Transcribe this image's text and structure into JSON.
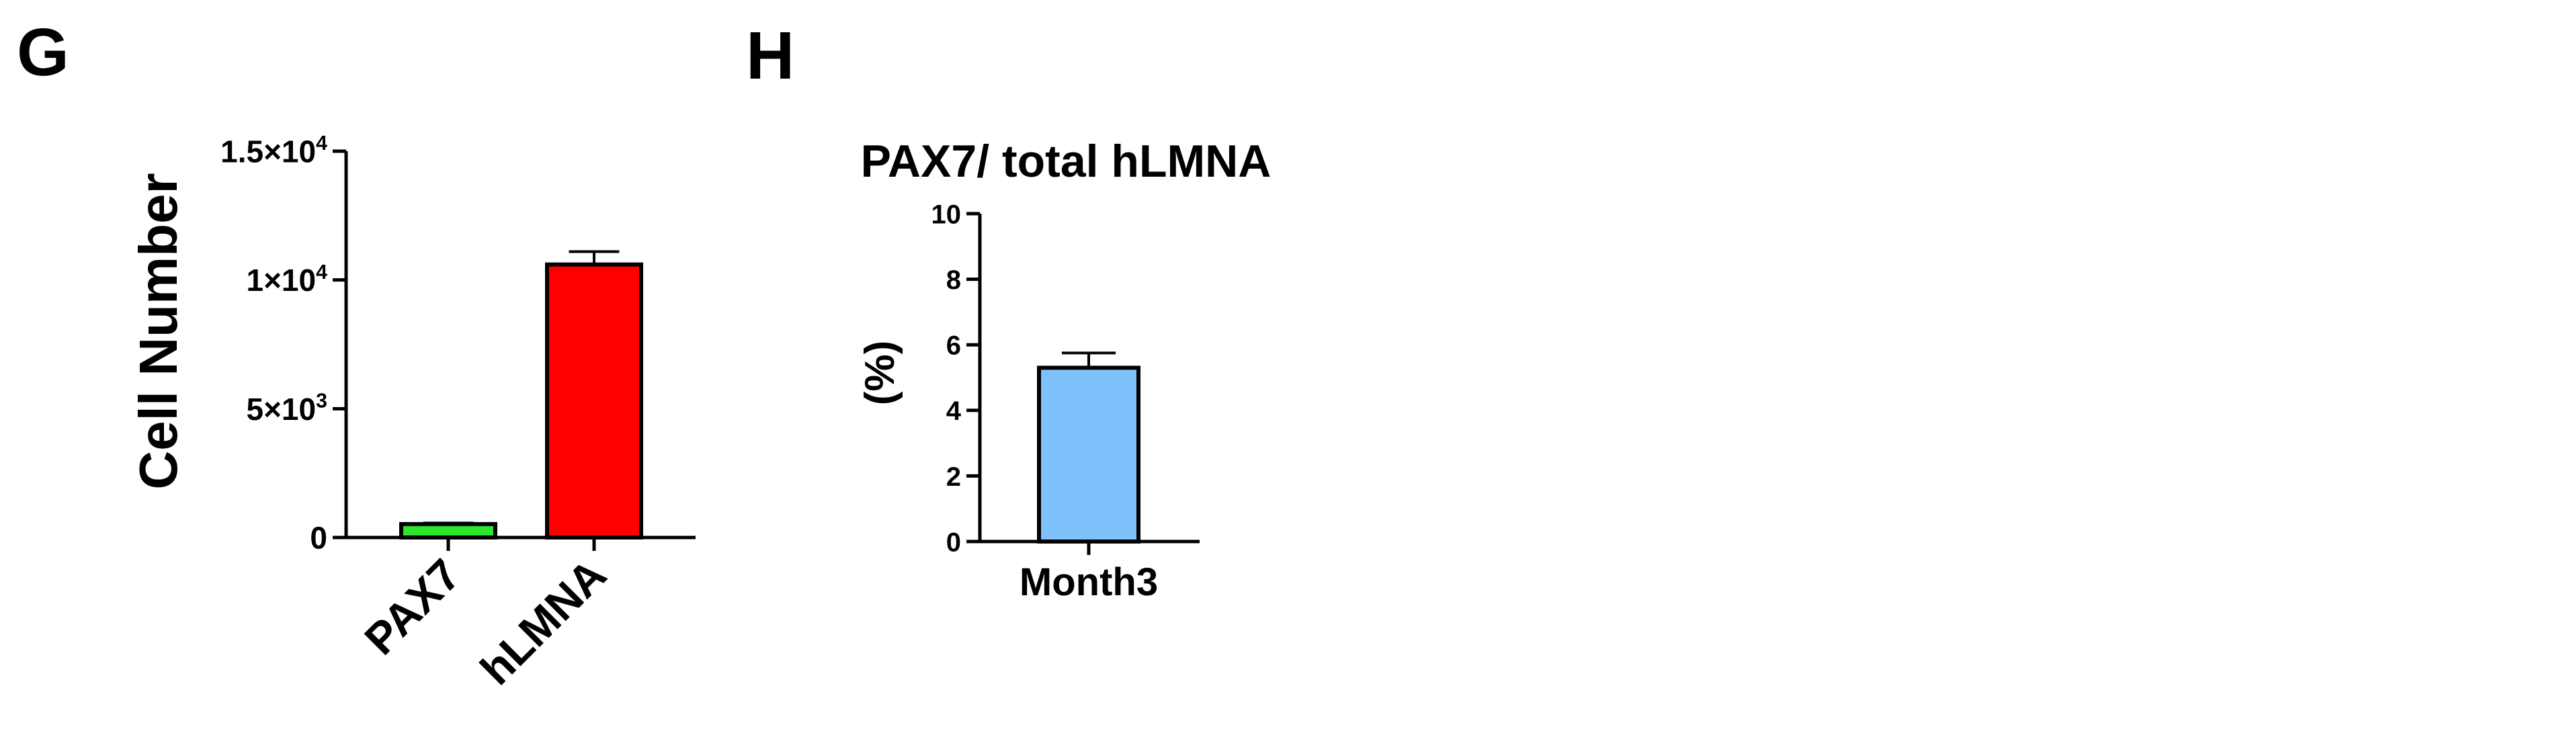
{
  "panels": {
    "g_letter": "G",
    "h_letter": "H"
  },
  "colors": {
    "pax7": "#2ee62e",
    "hlmna": "#ff0000",
    "month3": "#7fc1fb",
    "axis": "#000000"
  },
  "chart_data": [
    {
      "panel": "G",
      "type": "bar",
      "title": "",
      "xlabel": "",
      "ylabel": "Cell Number",
      "categories": [
        "PAX7",
        "hLMNA"
      ],
      "values": [
        520,
        10600
      ],
      "error": [
        40,
        500
      ],
      "ylim": [
        0,
        15000
      ],
      "yticks": [
        {
          "value": 0,
          "base": "0",
          "exp": ""
        },
        {
          "value": 5000,
          "base": "5×10",
          "exp": "3"
        },
        {
          "value": 10000,
          "base": "1×10",
          "exp": "4"
        },
        {
          "value": 15000,
          "base": "1.5×10",
          "exp": "4"
        }
      ],
      "tick_rotation": "-45deg",
      "grid": false,
      "legend": "none"
    },
    {
      "panel": "H",
      "type": "bar",
      "title": "PAX7/ total hLMNA",
      "xlabel": "",
      "ylabel": "(%)",
      "categories": [
        "Month3"
      ],
      "values": [
        5.3
      ],
      "error": [
        0.45
      ],
      "ylim": [
        0,
        10
      ],
      "yticks": [
        {
          "value": 0,
          "base": "0",
          "exp": ""
        },
        {
          "value": 2,
          "base": "2",
          "exp": ""
        },
        {
          "value": 4,
          "base": "4",
          "exp": ""
        },
        {
          "value": 6,
          "base": "6",
          "exp": ""
        },
        {
          "value": 8,
          "base": "8",
          "exp": ""
        },
        {
          "value": 10,
          "base": "10",
          "exp": ""
        }
      ],
      "grid": false,
      "legend": "none"
    }
  ]
}
